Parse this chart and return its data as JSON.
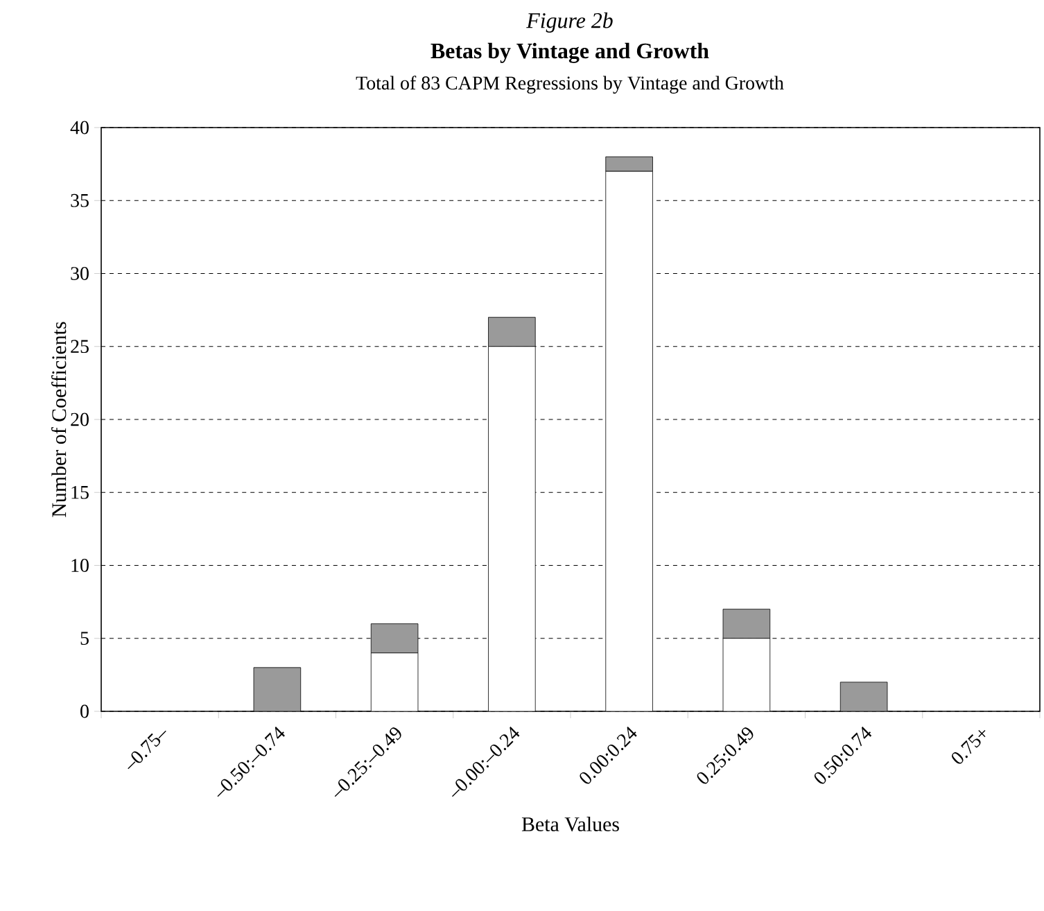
{
  "chart_data": {
    "type": "bar",
    "title": "Betas by Vintage and Growth",
    "subtitle": "Total of 83 CAPM Regressions by Vintage and Growth",
    "annotations": [
      "Figure 2b"
    ],
    "xlabel": "Beta Values",
    "ylabel": "Number of Coefficients",
    "categories": [
      "–0.75–",
      "–0.50:–0.74",
      "–0.25:–0.49",
      "–0.00:–0.24",
      "0.00:0.24",
      "0.25:0.49",
      "0.50:0.74",
      "0.75+"
    ],
    "stacked": true,
    "series": [
      {
        "color": "#ffffff",
        "values": [
          0,
          0,
          4,
          25,
          37,
          5,
          0,
          0
        ]
      },
      {
        "color": "#9a9a9a",
        "values": [
          0,
          3,
          2,
          2,
          1,
          2,
          2,
          0
        ]
      }
    ],
    "ylim": [
      0,
      40
    ],
    "yticks": [
      0,
      5,
      10,
      15,
      20,
      25,
      30,
      35,
      40
    ],
    "grid": "y"
  }
}
